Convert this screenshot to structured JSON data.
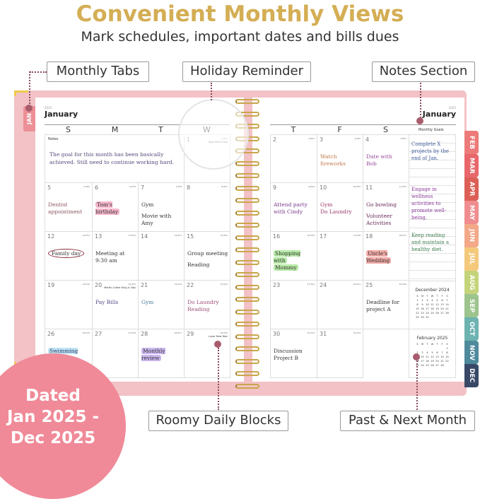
{
  "header": {
    "title": "Convenient Monthly Views",
    "subtitle": "Mark schedules, important dates and bills dues"
  },
  "callouts": {
    "monthly_tabs": "Monthly Tabs",
    "holiday_reminder": "Holiday Reminder",
    "notes_section": "Notes Section",
    "roomy_daily_blocks": "Roomy Daily Blocks",
    "past_next_month": "Past & Next Month"
  },
  "badge": {
    "line1": "Dated",
    "line2": "Jan 2025 -",
    "line3": "Dec 2025"
  },
  "planner": {
    "year": "2025",
    "month": "January",
    "notes_label": "Notes",
    "goals_label": "Monthly Goals",
    "notes_text": "The goal for this month has been basically achieved. Still need to continue working hard.",
    "left_days": [
      "S",
      "M",
      "T",
      "W"
    ],
    "right_days": [
      "T",
      "F",
      "S"
    ],
    "jan_tab": "JAN",
    "tabs": [
      {
        "label": "FEB",
        "color": "#ec7a78"
      },
      {
        "label": "MAR",
        "color": "#e8676a"
      },
      {
        "label": "APR",
        "color": "#dc5f56"
      },
      {
        "label": "MAY",
        "color": "#ef8d8f"
      },
      {
        "label": "JUN",
        "color": "#f3a888"
      },
      {
        "label": "JUL",
        "color": "#f4c97c"
      },
      {
        "label": "AUG",
        "color": "#c4d47a"
      },
      {
        "label": "SEP",
        "color": "#9cc48c"
      },
      {
        "label": "OCT",
        "color": "#6db3b1"
      },
      {
        "label": "NOV",
        "color": "#4f8a9c"
      },
      {
        "label": "DEC",
        "color": "#384866"
      }
    ],
    "left_cells": [
      [
        null,
        null,
        null,
        {
          "d": "1",
          "c": "1/364",
          "hol": "New Year's Day"
        }
      ],
      [
        {
          "d": "5",
          "c": "5/360",
          "n": [
            "Dentist",
            "appointment"
          ],
          "col": "#8a5560"
        },
        {
          "d": "6",
          "c": "6/359",
          "n": [
            "Tom's birthday"
          ],
          "col": "#333",
          "hl": "#f6b6cc"
        },
        {
          "d": "7",
          "c": "7/358",
          "n": [
            "Gym",
            "",
            "Movie with Amy"
          ],
          "col": "#333"
        },
        {
          "d": "8",
          "c": "8/357"
        }
      ],
      [
        {
          "d": "12",
          "c": "12/353",
          "n": [
            "Family day"
          ],
          "col": "#333",
          "circle": true
        },
        {
          "d": "13",
          "c": "13/352",
          "n": [
            "Meeting at",
            "9:30 am"
          ],
          "col": "#333"
        },
        {
          "d": "14",
          "c": "14/351"
        },
        {
          "d": "15",
          "c": "15/350",
          "n": [
            "Group meeting",
            "",
            "Reading"
          ],
          "col": "#333"
        }
      ],
      [
        {
          "d": "19",
          "c": "19/346"
        },
        {
          "d": "20",
          "c": "20/345",
          "hol": "Martin Luther King Jr. Day",
          "n": [
            "Pay Bills"
          ],
          "col": "#5a4a8a"
        },
        {
          "d": "21",
          "c": "21/344",
          "n": [
            "Gym"
          ],
          "col": "#4a7a9a"
        },
        {
          "d": "22",
          "c": "22/343",
          "n": [
            "Do Laundry",
            "Reading"
          ],
          "col": "#a0507a"
        }
      ],
      [
        {
          "d": "26",
          "c": "26/339",
          "n": [
            "Swimming Day"
          ],
          "col": "#2a3a6a",
          "hl": "#bfe3f2"
        },
        {
          "d": "27",
          "c": "27/338"
        },
        {
          "d": "28",
          "c": "28/337",
          "n": [
            "Monthly review"
          ],
          "col": "#333",
          "hl": "#c9b6ee"
        },
        {
          "d": "29",
          "c": "29/336",
          "hol": "Lunar New Year"
        }
      ]
    ],
    "right_cells": [
      [
        {
          "d": "2",
          "c": "2/363"
        },
        {
          "d": "3",
          "c": "3/362",
          "n": [
            "Watch fireworks"
          ],
          "col": "#c07a4a"
        },
        {
          "d": "4",
          "c": "4/361",
          "n": [
            "Date with",
            "Bob"
          ],
          "col": "#9a4a9a"
        }
      ],
      [
        {
          "d": "9",
          "c": "9/356",
          "n": [
            "Attend party",
            "with Cindy"
          ],
          "col": "#7a3a8a"
        },
        {
          "d": "10",
          "c": "10/355",
          "n": [
            "Gym",
            "Do Laundry"
          ],
          "col": "#9a3a6a"
        },
        {
          "d": "11",
          "c": "11/354",
          "n": [
            "Go bowling",
            "",
            "Volunteer",
            "Activities"
          ],
          "col": "#6a2a5a"
        }
      ],
      [
        {
          "d": "16",
          "c": "16/349",
          "n": [
            "Shopping with",
            "Mommy"
          ],
          "col": "#333",
          "hl": "#b7eaa6"
        },
        {
          "d": "17",
          "c": "17/348"
        },
        {
          "d": "18",
          "c": "18/347",
          "n": [
            "Uncle's Wedding"
          ],
          "col": "#333",
          "hl": "#f2aaa6"
        }
      ],
      [
        {
          "d": "23",
          "c": "23/342"
        },
        {
          "d": "24",
          "c": "24/341"
        },
        {
          "d": "25",
          "c": "25/340",
          "n": [
            "Deadline for",
            "project A"
          ],
          "col": "#333"
        }
      ],
      [
        {
          "d": "30",
          "c": "30/335",
          "n": [
            "Discussion",
            "Project B"
          ],
          "col": "#333"
        },
        {
          "d": "31",
          "c": "31/334"
        },
        null
      ]
    ],
    "goals": [
      {
        "text": "Complete X projects by the end of Jan.",
        "col": "#3a5a9a"
      },
      {
        "text": "Engage in wellness activities to promote well-being.",
        "col": "#8a3a9a"
      },
      {
        "text": "Keep reading and maintain a healthy diet.",
        "col": "#3a7a4a"
      }
    ],
    "mini_calendars": [
      {
        "title": "December 2024",
        "heads": [
          "S",
          "M",
          "T",
          "W",
          "T",
          "F",
          "S"
        ],
        "weeks": [
          [
            "1",
            "2",
            "3",
            "4",
            "5",
            "6",
            "7"
          ],
          [
            "8",
            "9",
            "10",
            "11",
            "12",
            "13",
            "14"
          ],
          [
            "15",
            "16",
            "17",
            "18",
            "19",
            "20",
            "21"
          ],
          [
            "22",
            "23",
            "24",
            "25",
            "26",
            "27",
            "28"
          ],
          [
            "29",
            "30",
            "31",
            "",
            "",
            "",
            ""
          ]
        ]
      },
      {
        "title": "February 2025",
        "heads": [
          "S",
          "M",
          "T",
          "W",
          "T",
          "F",
          "S"
        ],
        "weeks": [
          [
            "",
            "",
            "",
            "",
            "",
            "",
            "1"
          ],
          [
            "2",
            "3",
            "4",
            "5",
            "6",
            "7",
            "8"
          ],
          [
            "9",
            "10",
            "11",
            "12",
            "13",
            "14",
            "15"
          ],
          [
            "16",
            "17",
            "18",
            "19",
            "20",
            "21",
            "22"
          ],
          [
            "23",
            "24",
            "25",
            "26",
            "27",
            "28",
            ""
          ]
        ]
      }
    ]
  }
}
